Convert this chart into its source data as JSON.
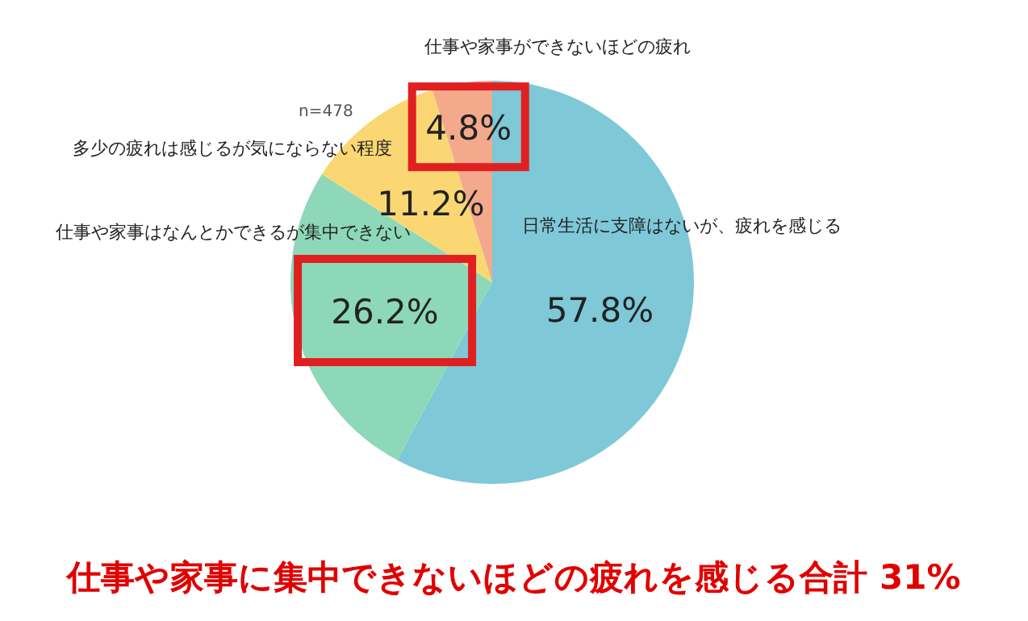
{
  "chart_data": {
    "type": "pie",
    "title": "仕事や家事に集中できないほどの疲れを感じる合計 31%",
    "categories": [
      "日常生活に支障はないが、疲れを感じる",
      "仕事や家事はなんとかできるが集中できない",
      "多少の疲れは感じるが気にならない程度",
      "仕事や家事ができないほどの疲れ"
    ],
    "values": [
      57.8,
      26.2,
      11.2,
      4.8
    ],
    "colors": [
      "#7ec8d8",
      "#8dd8b9",
      "#fbd773",
      "#f3a98c"
    ],
    "value_labels": [
      "57.8%",
      "26.2%",
      "11.2%",
      "4.8%"
    ],
    "annotations": [
      "n=478"
    ]
  }
}
